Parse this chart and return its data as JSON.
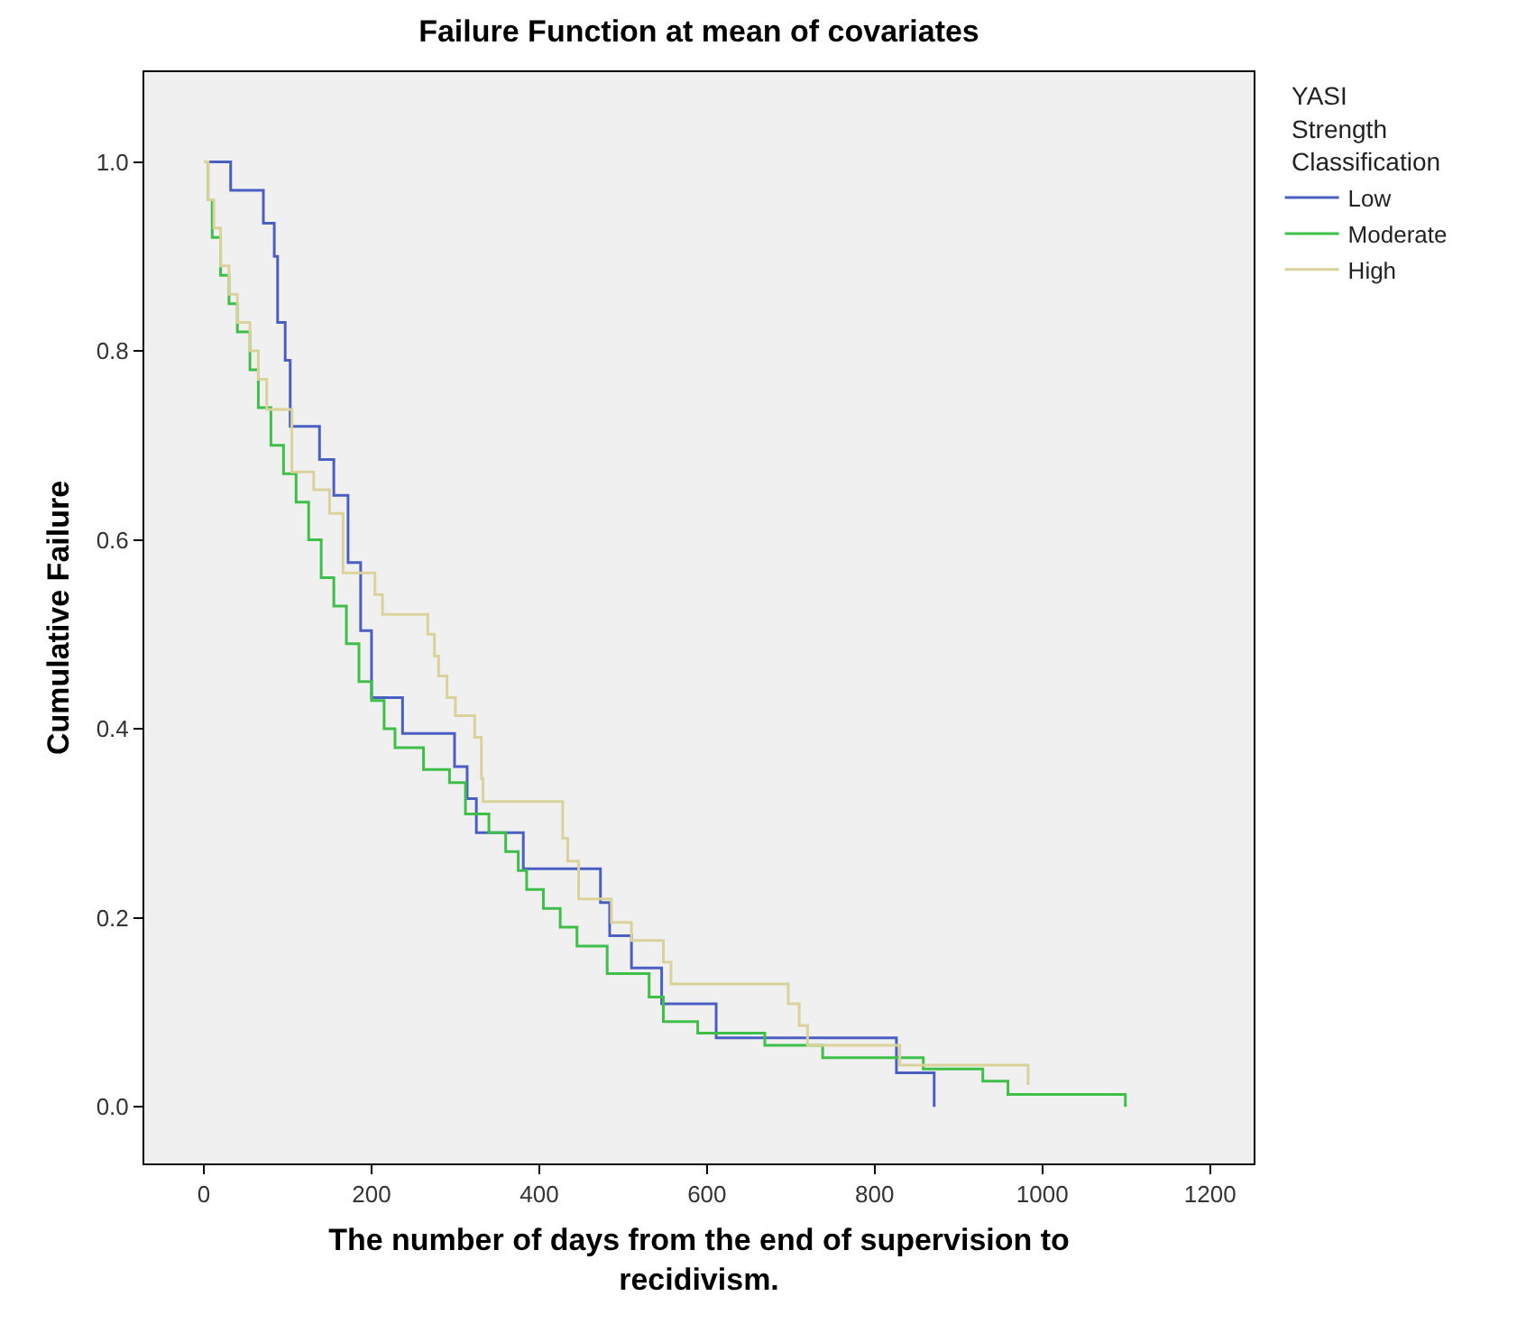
{
  "chart_data": {
    "type": "step",
    "title": "Failure Function at mean of covariates",
    "xlabel": "The number of days from the end of supervision to recidivism.",
    "ylabel": "Cumulative Failure",
    "legend_title": "YASI Strength Classification",
    "legend": "top right",
    "grid": false,
    "marker": "none",
    "line_style": "solid",
    "xlim": [
      -71,
      1252
    ],
    "ylim": [
      -0.06,
      1.095
    ],
    "xticks": [
      0,
      200,
      400,
      600,
      800,
      1000,
      1200
    ],
    "yticks": [
      {
        "value": 0,
        "label": "0.0"
      },
      {
        "value": 0.2,
        "label": "0.2"
      },
      {
        "value": 0.4,
        "label": "0.4"
      },
      {
        "value": 0.6,
        "label": "0.6"
      },
      {
        "value": 0.8,
        "label": "0.8"
      },
      {
        "value": 1,
        "label": "1.0"
      }
    ],
    "series": [
      {
        "name": "Low",
        "color": "#4a5fc1",
        "x": [
          0,
          32,
          71,
          84,
          88,
          97,
          103,
          138,
          155,
          172,
          187,
          200,
          237,
          299,
          314,
          325,
          381,
          473,
          484,
          510,
          546,
          611,
          826,
          871
        ],
        "values": [
          1.0,
          0.97,
          0.935,
          0.9,
          0.83,
          0.79,
          0.72,
          0.685,
          0.647,
          0.576,
          0.504,
          0.433,
          0.395,
          0.36,
          0.326,
          0.29,
          0.252,
          0.216,
          0.181,
          0.147,
          0.109,
          0.073,
          0.036,
          0
        ]
      },
      {
        "name": "Moderate",
        "color": "#3dbf48",
        "x": [
          0,
          5,
          10,
          20,
          30,
          40,
          55,
          65,
          80,
          95,
          110,
          125,
          140,
          155,
          170,
          185,
          200,
          215,
          228,
          262,
          293,
          312,
          340,
          360,
          375,
          385,
          405,
          425,
          445,
          481,
          531,
          548,
          589,
          669,
          738,
          858,
          929,
          959,
          1099
        ],
        "values": [
          1.0,
          0.96,
          0.92,
          0.88,
          0.85,
          0.82,
          0.78,
          0.74,
          0.7,
          0.67,
          0.64,
          0.6,
          0.56,
          0.53,
          0.49,
          0.45,
          0.43,
          0.4,
          0.38,
          0.357,
          0.343,
          0.31,
          0.29,
          0.27,
          0.25,
          0.23,
          0.21,
          0.19,
          0.17,
          0.141,
          0.116,
          0.09,
          0.078,
          0.065,
          0.052,
          0.04,
          0.027,
          0.013,
          0
        ]
      },
      {
        "name": "High",
        "color": "#d9d29a",
        "x": [
          0,
          5,
          12,
          20,
          30,
          40,
          55,
          65,
          75,
          105,
          131,
          150,
          166,
          204,
          213,
          267,
          275,
          280,
          290,
          300,
          323,
          331,
          333,
          428,
          434,
          447,
          486,
          510,
          548,
          557,
          697,
          710,
          720,
          830,
          983
        ],
        "values": [
          1.0,
          0.96,
          0.93,
          0.89,
          0.86,
          0.83,
          0.8,
          0.77,
          0.738,
          0.672,
          0.653,
          0.628,
          0.565,
          0.542,
          0.521,
          0.5,
          0.477,
          0.456,
          0.433,
          0.414,
          0.391,
          0.347,
          0.323,
          0.284,
          0.26,
          0.22,
          0.195,
          0.176,
          0.153,
          0.13,
          0.109,
          0.086,
          0.065,
          0.044,
          0.023
        ]
      }
    ]
  }
}
